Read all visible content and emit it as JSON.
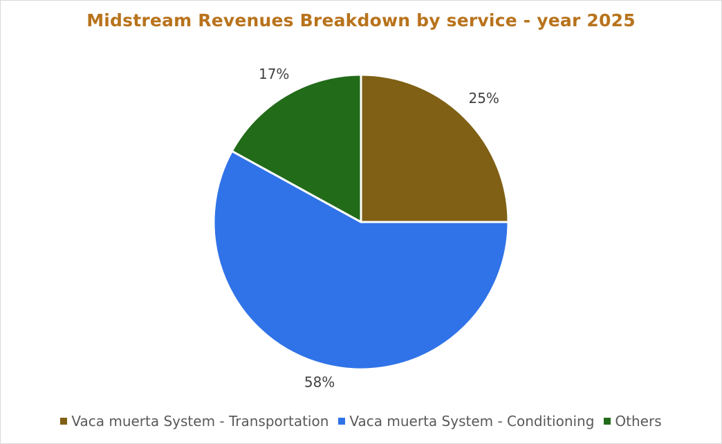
{
  "chart_data": {
    "type": "pie",
    "title": "Midstream Revenues Breakdown by service - year 2025",
    "legend_position": "bottom",
    "slices": [
      {
        "name": "Vaca muerta System - Transportation",
        "value": 25,
        "label": "25%",
        "color": "#7f6015"
      },
      {
        "name": "Vaca muerta System - Conditioning",
        "value": 58,
        "label": "58%",
        "color": "#3073e8"
      },
      {
        "name": "Others",
        "value": 17,
        "label": "17%",
        "color": "#226b19"
      }
    ]
  }
}
